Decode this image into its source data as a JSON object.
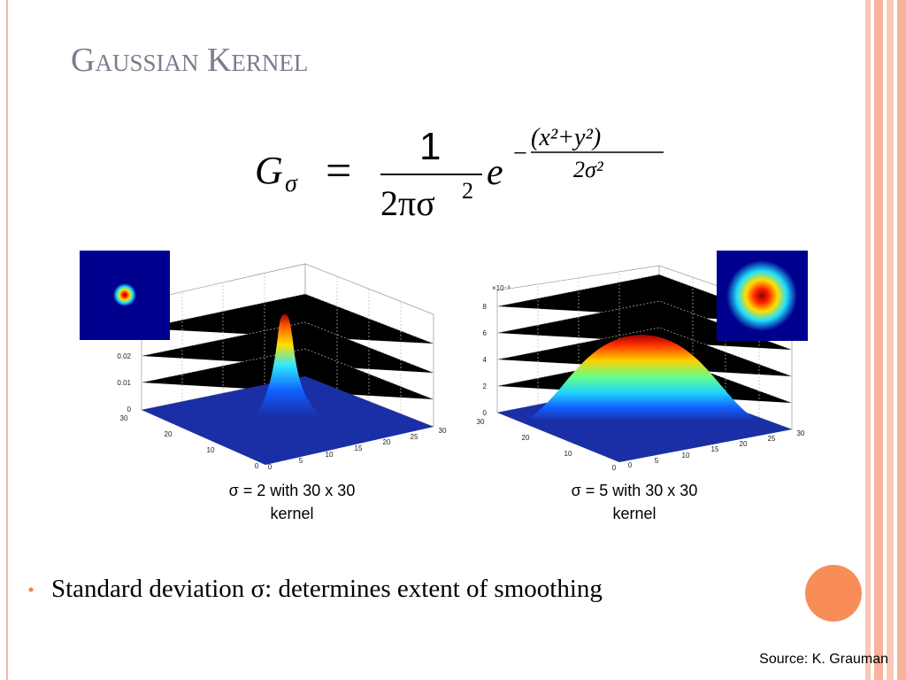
{
  "title": "Gaussian Kernel",
  "formula": {
    "lhs": "G",
    "lhs_sub": "σ",
    "equals": "=",
    "numerator": "1",
    "denominator": "2πσ",
    "denominator_sup": "2",
    "base": "e",
    "minus": "−",
    "exp_numerator": "(x²+y²)",
    "exp_denominator": "2σ²"
  },
  "figures": [
    {
      "caption": "σ = 2 with 30 x 30 kernel",
      "z_ticks": [
        "0",
        "0.01",
        "0.02"
      ],
      "y_ticks": [
        "30",
        "20",
        "10",
        "0"
      ],
      "x_ticks": [
        "0",
        "5",
        "10",
        "15",
        "20",
        "25",
        "30"
      ]
    },
    {
      "caption": "σ = 5 with 30 x 30 kernel",
      "z_exponent": "×10⁻³",
      "z_ticks": [
        "0",
        "2",
        "4",
        "6",
        "8"
      ],
      "y_ticks": [
        "30",
        "20",
        "10",
        "0"
      ],
      "x_ticks": [
        "0",
        "5",
        "10",
        "15",
        "20",
        "25",
        "30"
      ]
    }
  ],
  "bullets": [
    "Standard deviation σ: determines extent of smoothing"
  ],
  "source": "Source: K. Grauman"
}
